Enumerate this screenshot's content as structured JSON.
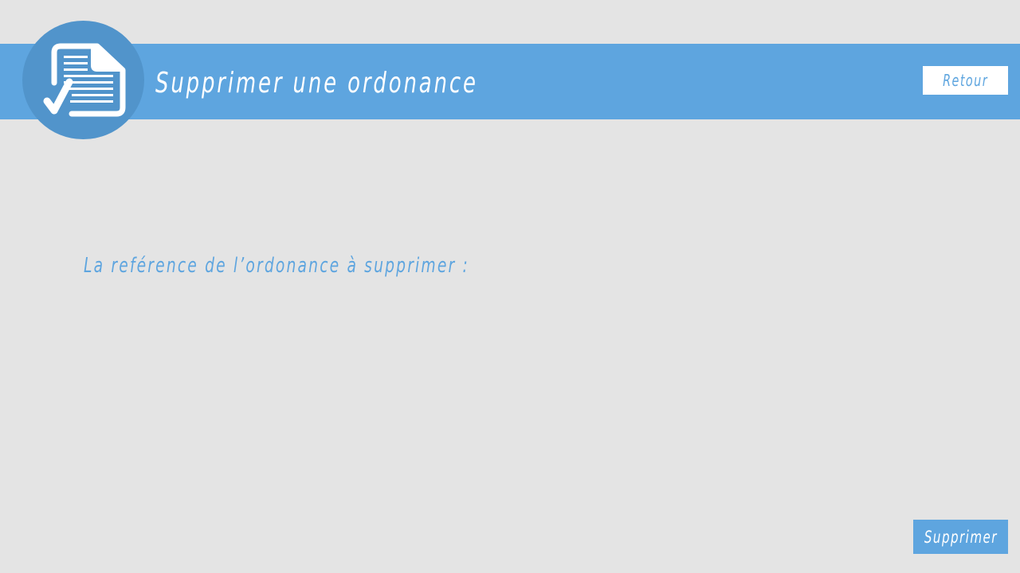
{
  "header": {
    "title": "Supprimer une ordonance",
    "back_label": "Retour",
    "logo_icon": "prescription-checked-document-icon"
  },
  "form": {
    "reference_label": "La reférence de l’ordonance à supprimer :",
    "submit_label": "Supprimer"
  },
  "colors": {
    "background": "#e4e4e4",
    "accent": "#5ea5df",
    "logo_circle": "#5194cb",
    "button_light": "#ffffff"
  }
}
